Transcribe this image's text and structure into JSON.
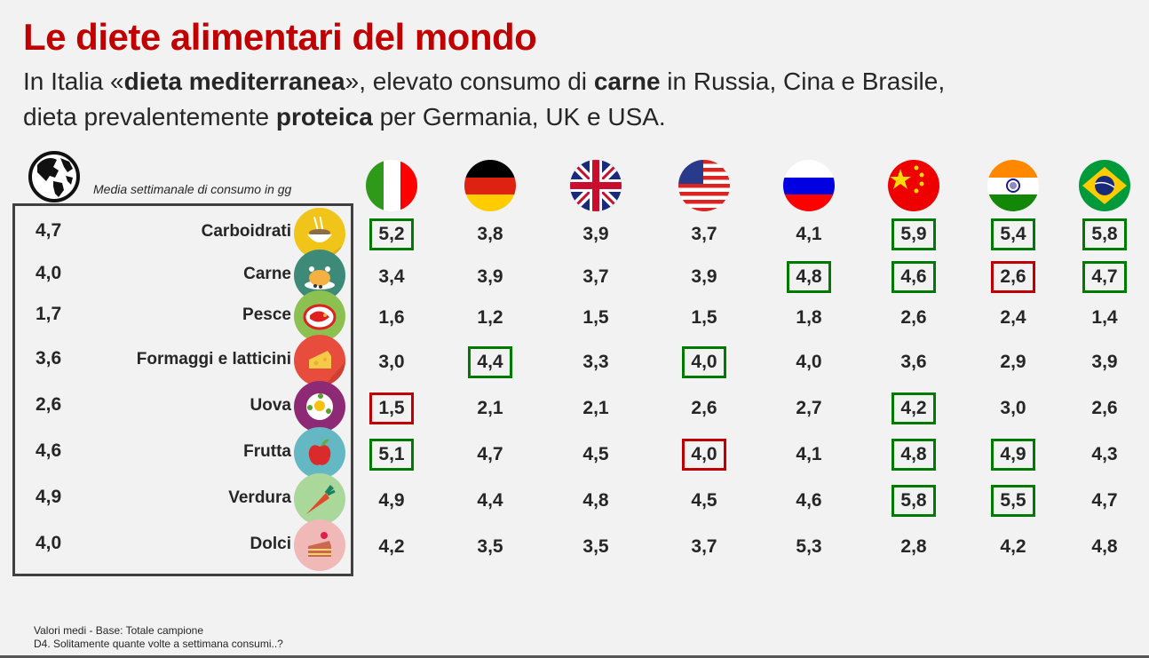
{
  "title": "Le diete alimentari del mondo",
  "subtitle": {
    "line1_parts": [
      "In Italia «",
      "dieta mediterranea",
      "», elevato consumo di ",
      "carne",
      " in Russia, Cina e Brasile,"
    ],
    "line2_parts": [
      "dieta prevalentemente ",
      "proteica",
      " per Germania, UK e USA."
    ]
  },
  "media_label": "Media settimanale di consumo in gg",
  "footnotes": [
    "Valori medi - Base: Totale campione",
    "D4. Solitamente quante volte a settimana consumi..?"
  ],
  "colors": {
    "title": "#c00000",
    "highlight_high": "#007a00",
    "highlight_low": "#c00000"
  },
  "chart_data": {
    "type": "table",
    "title": "Le diete alimentari del mondo",
    "subtitle": "Media settimanale di consumo in gg",
    "columns": [
      "Mondo",
      "Italia",
      "Germania",
      "UK",
      "USA",
      "Russia",
      "Cina",
      "India",
      "Brasile"
    ],
    "countries": [
      {
        "name": "Italia",
        "flag": "italy-flag-icon"
      },
      {
        "name": "Germania",
        "flag": "germany-flag-icon"
      },
      {
        "name": "UK",
        "flag": "uk-flag-icon"
      },
      {
        "name": "USA",
        "flag": "usa-flag-icon"
      },
      {
        "name": "Russia",
        "flag": "russia-flag-icon"
      },
      {
        "name": "Cina",
        "flag": "china-flag-icon"
      },
      {
        "name": "India",
        "flag": "india-flag-icon"
      },
      {
        "name": "Brasile",
        "flag": "brazil-flag-icon"
      }
    ],
    "rows": [
      {
        "category": "Carboidrati",
        "icon": "noodle-bowl-icon",
        "world": "4,7",
        "values": [
          "5,2",
          "3,8",
          "3,9",
          "3,7",
          "4,1",
          "5,9",
          "5,4",
          "5,8"
        ],
        "highlight": [
          "high",
          "",
          "",
          "",
          "",
          "high",
          "high",
          "high"
        ]
      },
      {
        "category": "Carne",
        "icon": "roast-chicken-icon",
        "world": "4,0",
        "values": [
          "3,4",
          "3,9",
          "3,7",
          "3,9",
          "4,8",
          "4,6",
          "2,6",
          "4,7"
        ],
        "highlight": [
          "",
          "",
          "",
          "",
          "high",
          "high",
          "low",
          "high"
        ]
      },
      {
        "category": "Pesce",
        "icon": "fish-plate-icon",
        "world": "1,7",
        "values": [
          "1,6",
          "1,2",
          "1,5",
          "1,5",
          "1,8",
          "2,6",
          "2,4",
          "1,4"
        ],
        "highlight": [
          "",
          "",
          "",
          "",
          "",
          "",
          "",
          ""
        ]
      },
      {
        "category": "Formaggi e latticini",
        "icon": "cheese-icon",
        "world": "3,6",
        "values": [
          "3,0",
          "4,4",
          "3,3",
          "4,0",
          "4,0",
          "3,6",
          "2,9",
          "3,9"
        ],
        "highlight": [
          "",
          "high",
          "",
          "high",
          "",
          "",
          "",
          ""
        ]
      },
      {
        "category": "Uova",
        "icon": "fried-egg-icon",
        "world": "2,6",
        "values": [
          "1,5",
          "2,1",
          "2,1",
          "2,6",
          "2,7",
          "4,2",
          "3,0",
          "2,6"
        ],
        "highlight": [
          "low",
          "",
          "",
          "",
          "",
          "high",
          "",
          ""
        ]
      },
      {
        "category": "Frutta",
        "icon": "apple-icon",
        "world": "4,6",
        "values": [
          "5,1",
          "4,7",
          "4,5",
          "4,0",
          "4,1",
          "4,8",
          "4,9",
          "4,3"
        ],
        "highlight": [
          "high",
          "",
          "",
          "low",
          "",
          "high",
          "high",
          ""
        ]
      },
      {
        "category": "Verdura",
        "icon": "carrot-icon",
        "world": "4,9",
        "values": [
          "4,9",
          "4,4",
          "4,8",
          "4,5",
          "4,6",
          "5,8",
          "5,5",
          "4,7"
        ],
        "highlight": [
          "",
          "",
          "",
          "",
          "",
          "high",
          "high",
          ""
        ]
      },
      {
        "category": "Dolci",
        "icon": "cake-slice-icon",
        "world": "4,0",
        "values": [
          "4,2",
          "3,5",
          "3,5",
          "3,7",
          "5,3",
          "2,8",
          "4,2",
          "4,8"
        ],
        "highlight": [
          "",
          "",
          "",
          "",
          "",
          "",
          "",
          ""
        ]
      }
    ]
  }
}
